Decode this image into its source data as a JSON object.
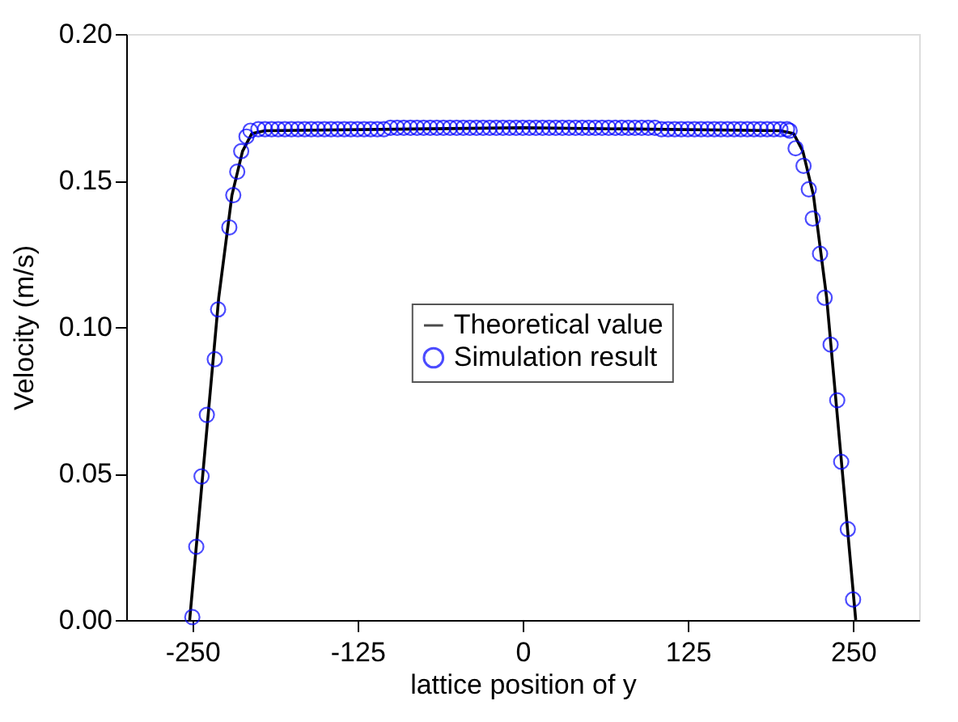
{
  "chart_data": {
    "type": "scatter",
    "xlabel": "lattice position of y",
    "ylabel": "Velocity (m/s)",
    "xlim": [
      -300,
      300
    ],
    "xticks": [
      -250,
      -125,
      0,
      125,
      250
    ],
    "ylim": [
      0,
      0.2
    ],
    "yticks": [
      {
        "value": 0,
        "label": "0.00"
      },
      {
        "value": 0.05,
        "label": "0.05"
      },
      {
        "value": 0.1,
        "label": "0.10"
      },
      {
        "value": 0.15,
        "label": "0.15"
      },
      {
        "value": 0.2,
        "label": "0.20"
      }
    ],
    "grid": false,
    "legend": "center",
    "series": [
      {
        "name": "Theoretical value",
        "type": "line",
        "color": "#000000",
        "line_style": "solid",
        "marker": "none",
        "x": [
          -252,
          -240,
          -230,
          -220,
          -212,
          -205,
          -195,
          0,
          195,
          205,
          212,
          220,
          230,
          240,
          252
        ],
        "values": [
          0,
          0.06,
          0.11,
          0.145,
          0.16,
          0.166,
          0.167,
          0.168,
          0.167,
          0.166,
          0.16,
          0.145,
          0.11,
          0.06,
          0
        ]
      },
      {
        "name": "Simulation result",
        "color": "#0000ff",
        "marker": "circle",
        "x": [
          -250,
          -247,
          -243,
          -239,
          -233,
          -230.5,
          -222,
          -219,
          -216,
          -213,
          -209,
          -206,
          -200,
          -195,
          -190,
          -185,
          -180,
          -175,
          -170,
          -165,
          -160,
          -155,
          -150,
          -145,
          -140,
          -135,
          -130,
          -125,
          -120,
          -115,
          -110,
          -105,
          -100,
          -95,
          -90,
          -85,
          -80,
          -75,
          -70,
          -65,
          -60,
          -55,
          -50,
          -45,
          -40,
          -35,
          -30,
          -25,
          -20,
          -15,
          -10,
          -5,
          0,
          5,
          10,
          15,
          20,
          25,
          30,
          35,
          40,
          45,
          50,
          55,
          60,
          65,
          70,
          75,
          80,
          85,
          90,
          95,
          100,
          105,
          110,
          115,
          120,
          125,
          130,
          135,
          140,
          145,
          150,
          155,
          160,
          165,
          170,
          175,
          180,
          185,
          190,
          195,
          200,
          202,
          206.5,
          212.5,
          216.5,
          219.5,
          225,
          228.5,
          233,
          238,
          241,
          246,
          250
        ],
        "values": [
          0.001,
          0.025,
          0.049,
          0.07,
          0.089,
          0.106,
          0.134,
          0.145,
          0.153,
          0.16,
          0.165,
          0.167,
          0.1675,
          0.1675,
          0.1675,
          0.1675,
          0.1675,
          0.1675,
          0.1675,
          0.1675,
          0.1675,
          0.1675,
          0.1675,
          0.1675,
          0.1675,
          0.1675,
          0.1675,
          0.1675,
          0.1675,
          0.1675,
          0.1675,
          0.1675,
          0.168,
          0.168,
          0.168,
          0.168,
          0.168,
          0.168,
          0.168,
          0.168,
          0.168,
          0.168,
          0.168,
          0.168,
          0.168,
          0.168,
          0.168,
          0.168,
          0.168,
          0.168,
          0.168,
          0.168,
          0.168,
          0.168,
          0.168,
          0.168,
          0.168,
          0.168,
          0.168,
          0.168,
          0.168,
          0.168,
          0.168,
          0.168,
          0.168,
          0.168,
          0.168,
          0.168,
          0.168,
          0.168,
          0.168,
          0.168,
          0.168,
          0.1675,
          0.1675,
          0.1675,
          0.1675,
          0.1675,
          0.1675,
          0.1675,
          0.1675,
          0.1675,
          0.1675,
          0.1675,
          0.1675,
          0.1675,
          0.1675,
          0.1675,
          0.1675,
          0.1675,
          0.1675,
          0.1675,
          0.1675,
          0.167,
          0.161,
          0.155,
          0.147,
          0.137,
          0.125,
          0.11,
          0.094,
          0.075,
          0.054,
          0.031,
          0.007
        ]
      }
    ]
  }
}
